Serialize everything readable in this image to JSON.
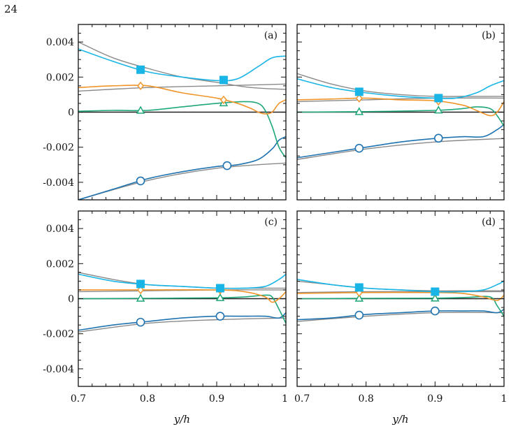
{
  "page_number": "24",
  "chart_data": {
    "type": "line",
    "xlabel": "y/h",
    "xlim": [
      0.7,
      1.0
    ],
    "ylim": [
      -0.005,
      0.005
    ],
    "x_ticks": [
      "0.7",
      "0.8",
      "0.9",
      "1"
    ],
    "y_ticks": [
      {
        "v": 0.004,
        "label": "0.004"
      },
      {
        "v": 0.002,
        "label": "0.002"
      },
      {
        "v": 0,
        "label": "0"
      },
      {
        "v": -0.002,
        "label": "-0.002"
      },
      {
        "v": -0.004,
        "label": "-0.004"
      }
    ],
    "colors": {
      "cyan": "#19b5e6",
      "orange": "#f0952a",
      "green": "#1fa77a",
      "blue": "#1f73b0",
      "gray": "#8a8a8a",
      "black": "#222222"
    },
    "panels": [
      {
        "label": "(a)",
        "series": [
          {
            "color": "gray",
            "x": [
              0.7,
              0.75,
              0.8,
              0.85,
              0.9,
              0.95,
              1.0
            ],
            "y": [
              0.004,
              0.0031,
              0.0025,
              0.002,
              0.0017,
              0.0014,
              0.0013
            ]
          },
          {
            "color": "gray",
            "x": [
              0.7,
              0.8,
              0.9,
              1.0
            ],
            "y": [
              0.0012,
              0.0014,
              0.0015,
              0.0016
            ]
          },
          {
            "color": "gray",
            "x": [
              0.7,
              0.8,
              0.9,
              1.0
            ],
            "y": [
              -0.005,
              -0.0039,
              -0.0032,
              -0.0029
            ]
          },
          {
            "color": "black",
            "x": [
              0.7,
              1.0
            ],
            "y": [
              0.0,
              0.0
            ]
          },
          {
            "color": "cyan",
            "marker": "square",
            "markers_x": [
              0.79,
              0.91
            ],
            "x": [
              0.7,
              0.75,
              0.8,
              0.85,
              0.9,
              0.93,
              0.96,
              0.98,
              1.0
            ],
            "y": [
              0.0036,
              0.0029,
              0.0023,
              0.002,
              0.0018,
              0.0019,
              0.0026,
              0.0031,
              0.0032
            ]
          },
          {
            "color": "orange",
            "marker": "diamond",
            "markers_x": [
              0.79,
              0.91
            ],
            "x": [
              0.7,
              0.75,
              0.8,
              0.85,
              0.9,
              0.93,
              0.95,
              0.96,
              0.97,
              0.98,
              0.99,
              1.0
            ],
            "y": [
              0.0014,
              0.0015,
              0.0015,
              0.0011,
              0.0008,
              0.0005,
              0.0002,
              0.0,
              -0.0001,
              0.0,
              0.0005,
              0.0007
            ]
          },
          {
            "color": "green",
            "marker": "triangle",
            "markers_x": [
              0.79,
              0.91
            ],
            "x": [
              0.7,
              0.75,
              0.8,
              0.85,
              0.9,
              0.94,
              0.96,
              0.97,
              0.98,
              0.99,
              1.0
            ],
            "y": [
              5e-05,
              0.0001,
              0.0001,
              0.0003,
              0.0005,
              0.0006,
              0.0005,
              0.0001,
              -0.0008,
              -0.002,
              -0.0026
            ]
          },
          {
            "color": "blue",
            "marker": "circle",
            "markers_x": [
              0.79,
              0.915
            ],
            "x": [
              0.7,
              0.75,
              0.8,
              0.85,
              0.9,
              0.93,
              0.96,
              0.98,
              0.99,
              1.0
            ],
            "y": [
              -0.005,
              -0.0044,
              -0.0038,
              -0.0034,
              -0.0031,
              -0.003,
              -0.0027,
              -0.0021,
              -0.0016,
              -0.0014
            ]
          }
        ]
      },
      {
        "label": "(b)",
        "series": [
          {
            "color": "gray",
            "x": [
              0.7,
              0.75,
              0.8,
              0.85,
              0.9,
              0.95,
              1.0
            ],
            "y": [
              0.0022,
              0.0016,
              0.0012,
              0.001,
              0.0009,
              0.0009,
              0.0009
            ]
          },
          {
            "color": "gray",
            "x": [
              0.7,
              0.8,
              0.9,
              1.0
            ],
            "y": [
              0.0006,
              0.0007,
              0.0008,
              0.0008
            ]
          },
          {
            "color": "gray",
            "x": [
              0.7,
              0.8,
              0.9,
              1.0
            ],
            "y": [
              -0.0027,
              -0.0021,
              -0.0017,
              -0.0015
            ]
          },
          {
            "color": "black",
            "x": [
              0.7,
              1.0
            ],
            "y": [
              0.0,
              0.0
            ]
          },
          {
            "color": "cyan",
            "marker": "square",
            "markers_x": [
              0.79,
              0.905
            ],
            "x": [
              0.7,
              0.75,
              0.8,
              0.85,
              0.9,
              0.93,
              0.96,
              0.98,
              1.0
            ],
            "y": [
              0.0019,
              0.0014,
              0.0011,
              0.0009,
              0.0008,
              0.0008,
              0.0011,
              0.0015,
              0.0018
            ]
          },
          {
            "color": "orange",
            "marker": "diamond",
            "markers_x": [
              0.79,
              0.905
            ],
            "x": [
              0.7,
              0.75,
              0.8,
              0.85,
              0.9,
              0.94,
              0.96,
              0.98,
              0.99,
              1.0
            ],
            "y": [
              0.0007,
              0.00075,
              0.0008,
              0.0007,
              0.00065,
              0.0004,
              0.0001,
              -0.0002,
              0.0,
              0.0006
            ]
          },
          {
            "color": "green",
            "marker": "triangle",
            "markers_x": [
              0.79,
              0.905
            ],
            "x": [
              0.7,
              0.8,
              0.9,
              0.94,
              0.96,
              0.98,
              0.99,
              1.0
            ],
            "y": [
              0.0,
              3e-05,
              0.0001,
              0.0002,
              0.0003,
              0.0002,
              -0.0002,
              -0.0008
            ]
          },
          {
            "color": "blue",
            "marker": "circle",
            "markers_x": [
              0.79,
              0.905
            ],
            "x": [
              0.7,
              0.75,
              0.8,
              0.85,
              0.9,
              0.94,
              0.97,
              0.99,
              1.0
            ],
            "y": [
              -0.0026,
              -0.0023,
              -0.002,
              -0.0017,
              -0.0015,
              -0.0014,
              -0.0014,
              -0.001,
              -0.0007
            ]
          }
        ]
      },
      {
        "label": "(c)",
        "series": [
          {
            "color": "gray",
            "x": [
              0.7,
              0.75,
              0.8,
              0.85,
              0.9,
              0.95,
              1.0
            ],
            "y": [
              0.0015,
              0.0011,
              0.0008,
              0.0007,
              0.0006,
              0.0006,
              0.0006
            ]
          },
          {
            "color": "gray",
            "x": [
              0.7,
              0.8,
              0.9,
              1.0
            ],
            "y": [
              0.0004,
              0.00045,
              0.0005,
              0.0005
            ]
          },
          {
            "color": "gray",
            "x": [
              0.7,
              0.8,
              0.9,
              1.0
            ],
            "y": [
              -0.0019,
              -0.0014,
              -0.0012,
              -0.0011
            ]
          },
          {
            "color": "black",
            "x": [
              0.7,
              1.0
            ],
            "y": [
              0.0,
              0.0
            ]
          },
          {
            "color": "cyan",
            "marker": "square",
            "markers_x": [
              0.79,
              0.905
            ],
            "x": [
              0.7,
              0.75,
              0.8,
              0.85,
              0.9,
              0.94,
              0.97,
              0.99,
              1.0
            ],
            "y": [
              0.0014,
              0.001,
              0.0008,
              0.0007,
              0.0006,
              0.0006,
              0.0007,
              0.0011,
              0.0014
            ]
          },
          {
            "color": "orange",
            "marker": "diamond",
            "markers_x": [
              0.79,
              0.905
            ],
            "x": [
              0.7,
              0.8,
              0.9,
              0.94,
              0.97,
              0.98,
              0.99,
              1.0
            ],
            "y": [
              0.0005,
              0.0005,
              0.0005,
              0.0004,
              0.0001,
              -0.0002,
              0.0,
              0.0004
            ]
          },
          {
            "color": "green",
            "marker": "triangle",
            "markers_x": [
              0.79,
              0.905
            ],
            "x": [
              0.7,
              0.8,
              0.9,
              0.94,
              0.97,
              0.98,
              0.99,
              1.0
            ],
            "y": [
              0.0,
              2e-05,
              5e-05,
              0.0001,
              0.0002,
              0.0001,
              -0.0006,
              -0.0014
            ]
          },
          {
            "color": "blue",
            "marker": "circle",
            "markers_x": [
              0.79,
              0.905
            ],
            "x": [
              0.7,
              0.75,
              0.8,
              0.85,
              0.9,
              0.94,
              0.97,
              0.99,
              1.0
            ],
            "y": [
              -0.0018,
              -0.0015,
              -0.0013,
              -0.0011,
              -0.001,
              -0.001,
              -0.001,
              -0.0011,
              -0.0008
            ]
          }
        ]
      },
      {
        "label": "(d)",
        "series": [
          {
            "color": "gray",
            "x": [
              0.7,
              0.75,
              0.8,
              0.85,
              0.9,
              0.95,
              1.0
            ],
            "y": [
              0.001,
              0.0008,
              0.0006,
              0.0005,
              0.00045,
              0.00045,
              0.00045
            ]
          },
          {
            "color": "gray",
            "x": [
              0.7,
              0.8,
              0.9,
              1.0
            ],
            "y": [
              0.00035,
              0.0004,
              0.0004,
              0.0004
            ]
          },
          {
            "color": "gray",
            "x": [
              0.7,
              0.8,
              0.9,
              1.0
            ],
            "y": [
              -0.0013,
              -0.001,
              -0.0008,
              -0.0008
            ]
          },
          {
            "color": "black",
            "x": [
              0.7,
              1.0
            ],
            "y": [
              0.0,
              0.0
            ]
          },
          {
            "color": "cyan",
            "marker": "square",
            "markers_x": [
              0.79,
              0.9
            ],
            "x": [
              0.7,
              0.75,
              0.8,
              0.85,
              0.9,
              0.94,
              0.97,
              0.99,
              1.0
            ],
            "y": [
              0.0011,
              0.0008,
              0.0006,
              0.0005,
              0.0004,
              0.0004,
              0.0005,
              0.0008,
              0.001
            ]
          },
          {
            "color": "orange",
            "marker": "diamond",
            "markers_x": [
              0.79,
              0.9
            ],
            "x": [
              0.7,
              0.8,
              0.9,
              0.94,
              0.97,
              0.99,
              1.0
            ],
            "y": [
              0.0003,
              0.00035,
              0.00035,
              0.0003,
              0.0001,
              -0.0001,
              0.0002
            ]
          },
          {
            "color": "green",
            "marker": "triangle",
            "markers_x": [
              0.79,
              0.9
            ],
            "x": [
              0.7,
              0.8,
              0.9,
              0.95,
              0.98,
              0.99,
              1.0
            ],
            "y": [
              0.0,
              2e-05,
              3e-05,
              8e-05,
              0.0001,
              -0.0004,
              -0.001
            ]
          },
          {
            "color": "blue",
            "marker": "circle",
            "markers_x": [
              0.79,
              0.9
            ],
            "x": [
              0.7,
              0.75,
              0.8,
              0.85,
              0.9,
              0.94,
              0.97,
              0.99,
              1.0
            ],
            "y": [
              -0.0012,
              -0.0011,
              -0.0009,
              -0.0008,
              -0.0007,
              -0.0007,
              -0.0007,
              -0.0008,
              -0.0006
            ]
          }
        ]
      }
    ]
  }
}
